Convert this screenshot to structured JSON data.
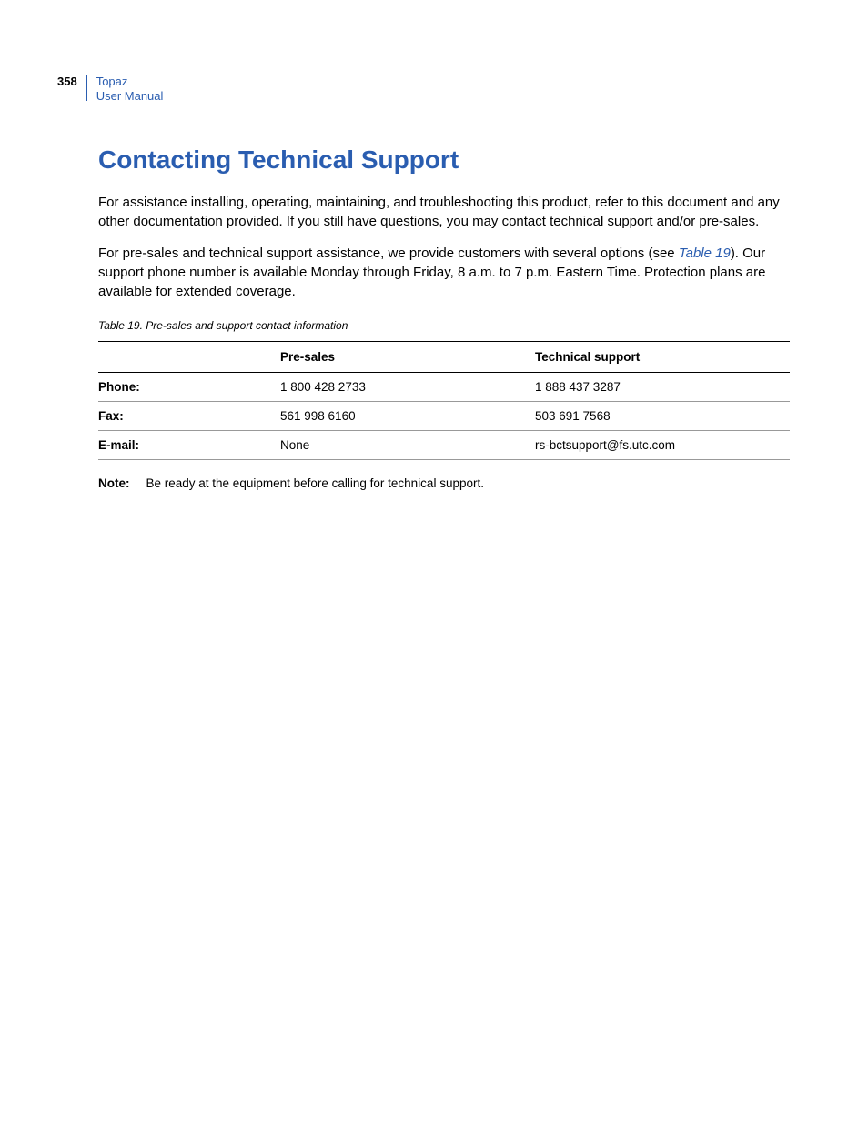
{
  "header": {
    "page_number": "358",
    "title_line1": "Topaz",
    "title_line2": "User Manual"
  },
  "main": {
    "heading": "Contacting Technical Support",
    "paragraph1": "For assistance installing, operating, maintaining, and troubleshooting this product, refer to this document and any other documentation provided. If you still have questions, you may contact technical support and/or pre-sales.",
    "paragraph2_part1": "For pre-sales and technical support assistance, we provide customers with several options (see ",
    "paragraph2_link": "Table 19",
    "paragraph2_part2": "). Our support phone number is available Monday through Friday, 8 a.m. to 7 p.m. Eastern Time. Protection plans are available for extended coverage.",
    "table_caption": "Table 19. Pre-sales and support contact information",
    "table": {
      "headers": {
        "col1": "",
        "col2": "Pre-sales",
        "col3": "Technical support"
      },
      "rows": [
        {
          "label": "Phone:",
          "presales": "1 800 428 2733",
          "tech": "1 888 437 3287"
        },
        {
          "label": "Fax:",
          "presales": "561 998 6160",
          "tech": "503 691 7568"
        },
        {
          "label": "E-mail:",
          "presales": "None",
          "tech": "rs-bctsupport@fs.utc.com"
        }
      ]
    },
    "note_label": "Note:",
    "note_text": "Be ready at the equipment before calling for technical support."
  },
  "colors": {
    "link_blue": "#2a5db0",
    "text_black": "#000000",
    "background": "#ffffff",
    "border_gray": "#999999"
  }
}
